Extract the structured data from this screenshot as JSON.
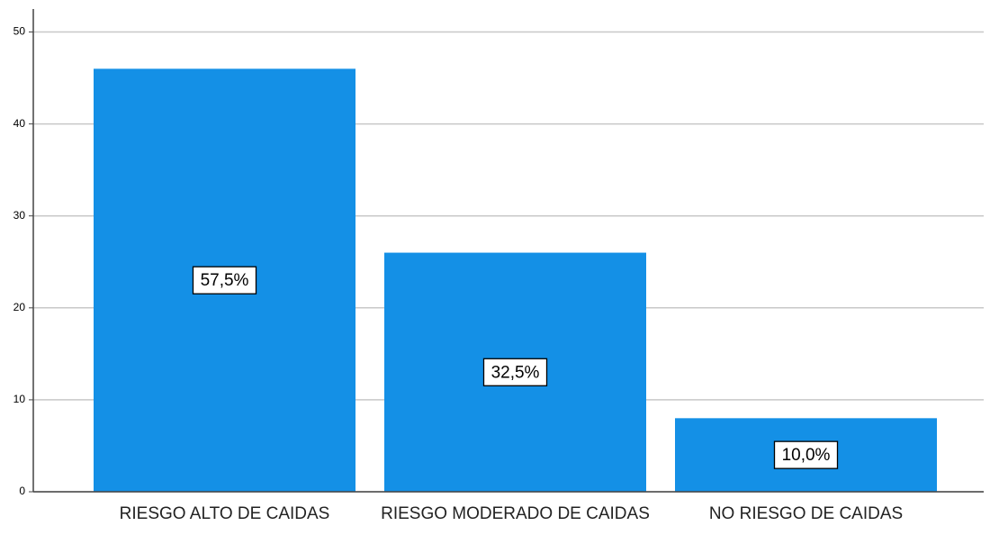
{
  "chart_data": {
    "type": "bar",
    "categories": [
      "RIESGO ALTO DE CAIDAS",
      "RIESGO MODERADO DE CAIDAS",
      "NO RIESGO DE CAIDAS"
    ],
    "values": [
      46,
      26,
      8
    ],
    "percentages": [
      57.5,
      32.5,
      10.0
    ],
    "percentage_labels": [
      "57,5%",
      "32,5%",
      "10,0%"
    ],
    "color": "#1490e6",
    "ylim": [
      0,
      52.5
    ],
    "yticks": [
      0,
      10,
      20,
      30,
      40,
      50
    ],
    "grid": true
  }
}
